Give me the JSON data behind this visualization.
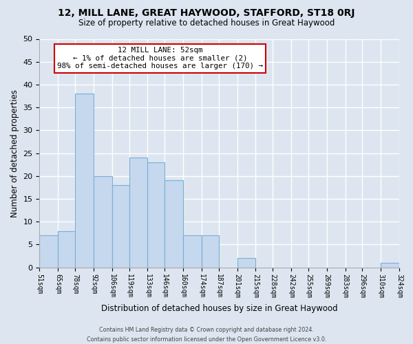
{
  "title": "12, MILL LANE, GREAT HAYWOOD, STAFFORD, ST18 0RJ",
  "subtitle": "Size of property relative to detached houses in Great Haywood",
  "xlabel": "Distribution of detached houses by size in Great Haywood",
  "ylabel": "Number of detached properties",
  "bar_color": "#c5d8ee",
  "bar_edge_color": "#7aafd4",
  "background_color": "#dde6f0",
  "grid_color": "#ffffff",
  "bin_edges": [
    51,
    65,
    78,
    92,
    106,
    119,
    133,
    146,
    160,
    174,
    187,
    201,
    215,
    228,
    242,
    255,
    269,
    283,
    296,
    310,
    324
  ],
  "bin_labels": [
    "51sqm",
    "65sqm",
    "78sqm",
    "92sqm",
    "106sqm",
    "119sqm",
    "133sqm",
    "146sqm",
    "160sqm",
    "174sqm",
    "187sqm",
    "201sqm",
    "215sqm",
    "228sqm",
    "242sqm",
    "255sqm",
    "269sqm",
    "283sqm",
    "296sqm",
    "310sqm",
    "324sqm"
  ],
  "counts": [
    7,
    8,
    38,
    20,
    18,
    24,
    23,
    19,
    7,
    7,
    0,
    2,
    0,
    0,
    0,
    0,
    0,
    0,
    0,
    1
  ],
  "ylim": [
    0,
    50
  ],
  "yticks": [
    0,
    5,
    10,
    15,
    20,
    25,
    30,
    35,
    40,
    45,
    50
  ],
  "annotation_box_text": "12 MILL LANE: 52sqm\n← 1% of detached houses are smaller (2)\n98% of semi-detached houses are larger (170) →",
  "annotation_box_color": "#ffffff",
  "annotation_box_edgecolor": "#cc0000",
  "footer_line1": "Contains HM Land Registry data © Crown copyright and database right 2024.",
  "footer_line2": "Contains public sector information licensed under the Open Government Licence v3.0."
}
